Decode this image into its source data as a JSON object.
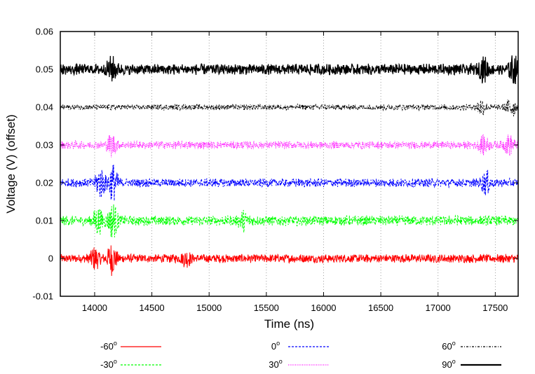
{
  "chart_data": {
    "type": "line",
    "title": "",
    "xlabel": "Time (ns)",
    "ylabel": "Voltage (V) (offset)",
    "xlim": [
      13700,
      17700
    ],
    "ylim": [
      -0.01,
      0.06
    ],
    "xticks": [
      "14000",
      "14500",
      "15000",
      "15500",
      "16000",
      "16500",
      "17000",
      "17500"
    ],
    "yticks": [
      "-0.01",
      "0",
      "0.01",
      "0.02",
      "0.03",
      "0.04",
      "0.05",
      "0.06"
    ],
    "grid": "vertical dotted",
    "legend_placement": "bottom",
    "series": [
      {
        "name": "-60",
        "unit": "o",
        "color": "#ff0000",
        "style": "solid",
        "offset": 0.0,
        "amplitude": 0.0012,
        "bursts": [
          {
            "x": 14000,
            "a": 0.0025
          },
          {
            "x": 14150,
            "a": 0.0035
          },
          {
            "x": 14800,
            "a": 0.0015
          }
        ]
      },
      {
        "name": "-30",
        "unit": "o",
        "color": "#00ff00",
        "style": "dashed",
        "offset": 0.01,
        "amplitude": 0.0014,
        "bursts": [
          {
            "x": 14030,
            "a": 0.003
          },
          {
            "x": 14160,
            "a": 0.004
          },
          {
            "x": 15300,
            "a": 0.0018
          }
        ]
      },
      {
        "name": "0",
        "unit": "o",
        "color": "#0000ff",
        "style": "dashed",
        "offset": 0.02,
        "amplitude": 0.0012,
        "bursts": [
          {
            "x": 14050,
            "a": 0.0035
          },
          {
            "x": 14160,
            "a": 0.0045
          },
          {
            "x": 17420,
            "a": 0.0025
          }
        ]
      },
      {
        "name": "30",
        "unit": "o",
        "color": "#ff00ff",
        "style": "dotted",
        "offset": 0.03,
        "amplitude": 0.0011,
        "bursts": [
          {
            "x": 14150,
            "a": 0.0025
          },
          {
            "x": 17400,
            "a": 0.002
          },
          {
            "x": 17620,
            "a": 0.0022
          }
        ]
      },
      {
        "name": "60",
        "unit": "o",
        "color": "#000000",
        "style": "dash-dot",
        "offset": 0.04,
        "amplitude": 0.0008,
        "bursts": [
          {
            "x": 17380,
            "a": 0.0018
          },
          {
            "x": 17640,
            "a": 0.0025
          }
        ]
      },
      {
        "name": "90",
        "unit": "o",
        "color": "#000000",
        "style": "solid-thick",
        "offset": 0.05,
        "amplitude": 0.0015,
        "bursts": [
          {
            "x": 14150,
            "a": 0.0025
          },
          {
            "x": 17400,
            "a": 0.0025
          },
          {
            "x": 17660,
            "a": 0.003
          }
        ]
      }
    ]
  }
}
